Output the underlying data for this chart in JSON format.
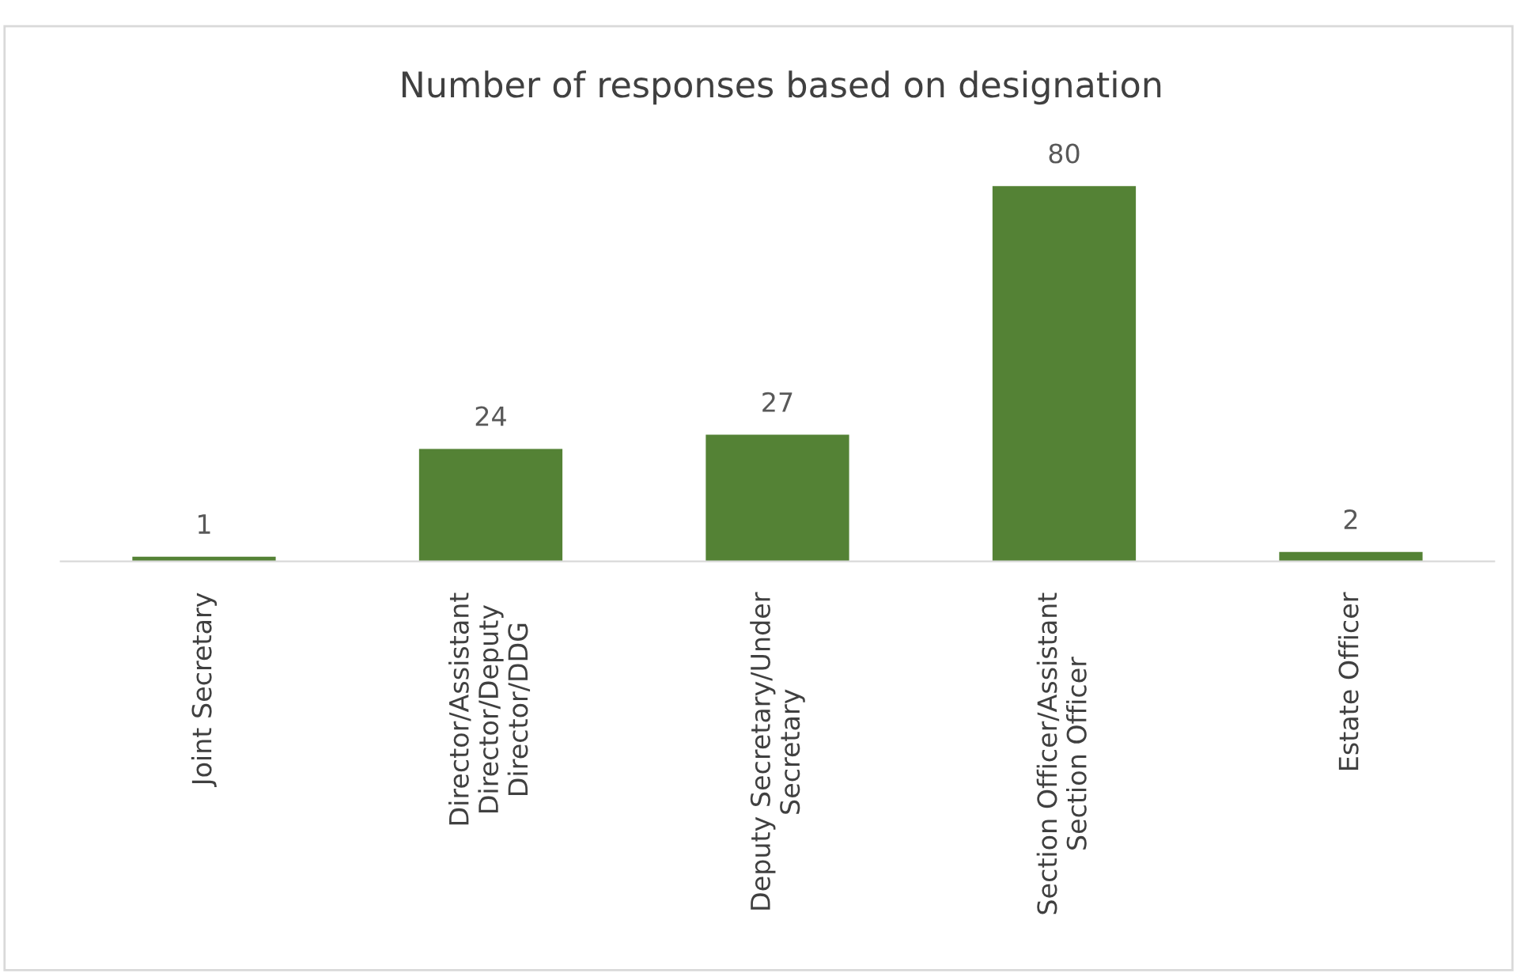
{
  "chart_data": {
    "type": "bar",
    "title": "Number of responses based on designation",
    "categories": [
      "Joint Secretary",
      "Director/Assistant\nDirector/Deputy\nDirector/DDG",
      "Deputy Secretary/Under\nSecretary",
      "Section Officer/Assistant\nSection Officer",
      "Estate Officer"
    ],
    "values": [
      1,
      24,
      27,
      80,
      2
    ],
    "color": "#548235",
    "data_labels": true,
    "grid": false,
    "tick_labels": "x"
  }
}
